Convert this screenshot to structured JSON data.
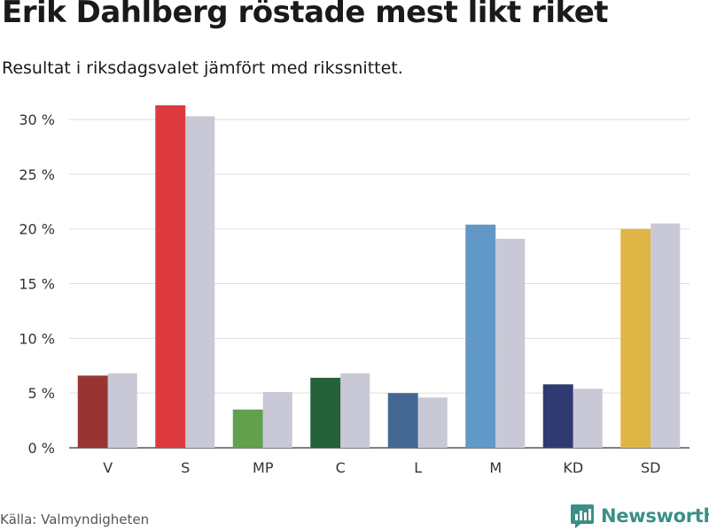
{
  "title": "Erik Dahlberg röstade mest likt riket",
  "subtitle": "Resultat i riksdagsvalet jämfört med rikssnittet.",
  "source": "Källa: Valmyndigheten",
  "brand": "Newsworthy",
  "colors": {
    "comparison": "#c8c8d6",
    "grid": "#dddddd",
    "axis_text": "#333333",
    "brand": "#3b8f86"
  },
  "chart_data": {
    "type": "bar",
    "categories": [
      "V",
      "S",
      "MP",
      "C",
      "L",
      "M",
      "KD",
      "SD"
    ],
    "series": [
      {
        "values": [
          6.6,
          31.3,
          3.5,
          6.4,
          5.0,
          20.4,
          5.8,
          20.0
        ],
        "colors": [
          "#983533",
          "#dd3a40",
          "#62a04e",
          "#24613a",
          "#436894",
          "#6298c8",
          "#2f3a72",
          "#dfb545"
        ]
      },
      {
        "values": [
          6.8,
          30.3,
          5.1,
          6.8,
          4.6,
          19.1,
          5.4,
          20.5
        ],
        "color": "#c8c8d6"
      }
    ],
    "y_ticks": [
      {
        "value": 0,
        "label": "0 %"
      },
      {
        "value": 5,
        "label": "5 %"
      },
      {
        "value": 10,
        "label": "10 %"
      },
      {
        "value": 15,
        "label": "15 %"
      },
      {
        "value": 20,
        "label": "20 %"
      },
      {
        "value": 25,
        "label": "25 %"
      },
      {
        "value": 30,
        "label": "30 %"
      }
    ],
    "ylim": [
      0,
      33
    ],
    "grid": true
  }
}
